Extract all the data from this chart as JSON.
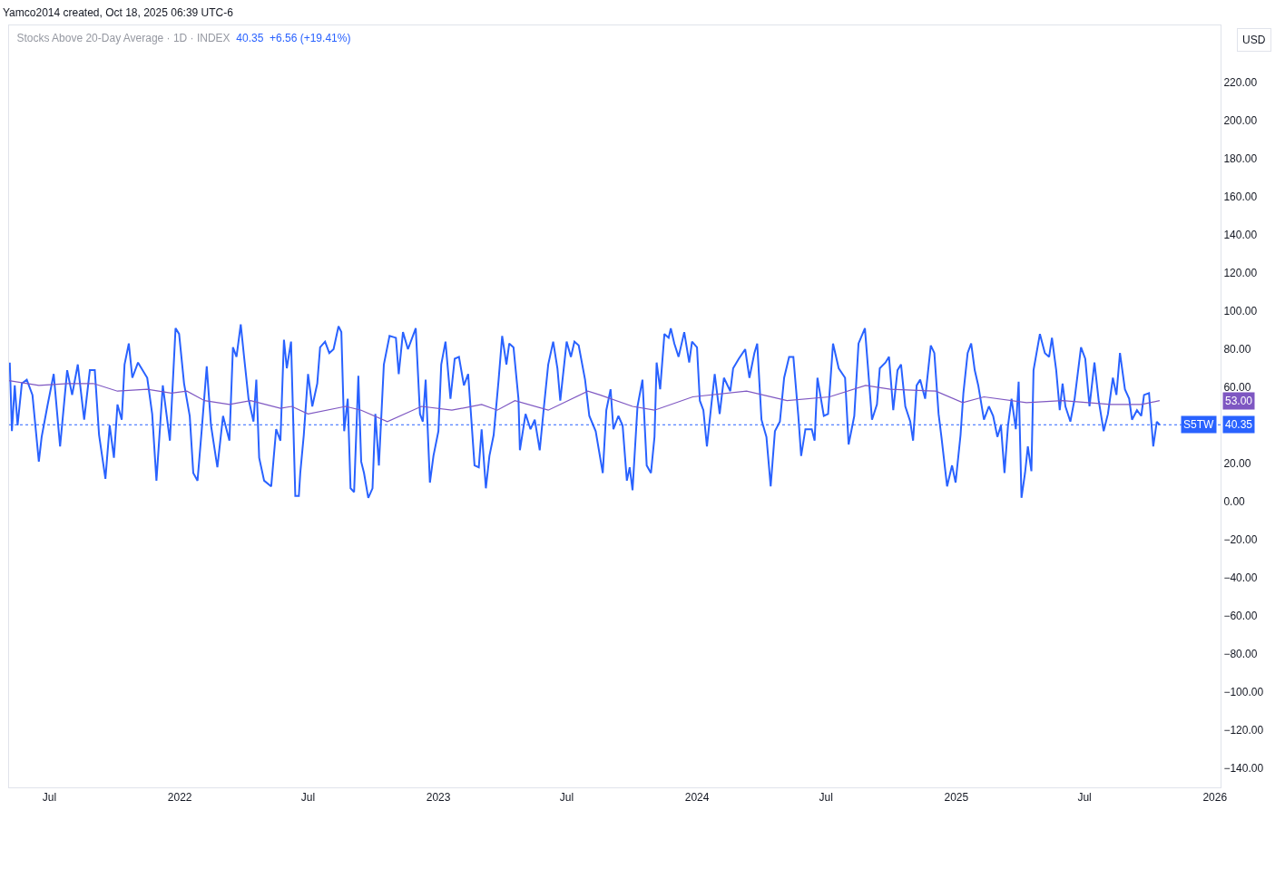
{
  "chart_data": {
    "type": "line",
    "title": "Stocks Above 20-Day Average · 1D · INDEX",
    "subtitle": "40.35  +6.56 (+19.41%)",
    "xlim": [
      "2021-05-05",
      "2026-01-09"
    ],
    "xticks": [
      {
        "value": "2021-07-01",
        "label": "Jul"
      },
      {
        "value": "2022-01-01",
        "label": "2022"
      },
      {
        "value": "2022-07-01",
        "label": "Jul"
      },
      {
        "value": "2023-01-01",
        "label": "2023"
      },
      {
        "value": "2023-07-01",
        "label": "Jul"
      },
      {
        "value": "2024-01-01",
        "label": "2024"
      },
      {
        "value": "2024-07-01",
        "label": "Jul"
      },
      {
        "value": "2025-01-01",
        "label": "2025"
      },
      {
        "value": "2025-07-01",
        "label": "Jul"
      },
      {
        "value": "2026-01-01",
        "label": "2026"
      }
    ],
    "ylim": [
      -150,
      250
    ],
    "yticks": [
      {
        "value": -140,
        "label": "−140.00"
      },
      {
        "value": -120,
        "label": "−120.00"
      },
      {
        "value": -100,
        "label": "−100.00"
      },
      {
        "value": -80,
        "label": "−80.00"
      },
      {
        "value": -60,
        "label": "−60.00"
      },
      {
        "value": -40,
        "label": "−40.00"
      },
      {
        "value": -20,
        "label": "−20.00"
      },
      {
        "value": 0,
        "label": "0.00"
      },
      {
        "value": 20,
        "label": "20.00"
      },
      {
        "value": 60,
        "label": "60.00"
      },
      {
        "value": 80,
        "label": "80.00"
      },
      {
        "value": 100,
        "label": "100.00"
      },
      {
        "value": 120,
        "label": "120.00"
      },
      {
        "value": 140,
        "label": "140.00"
      },
      {
        "value": 160,
        "label": "160.00"
      },
      {
        "value": 180,
        "label": "180.00"
      },
      {
        "value": 200,
        "label": "200.00"
      },
      {
        "value": 220,
        "label": "220.00"
      }
    ],
    "grid": false,
    "legend": false,
    "series": [
      {
        "name": "S5TW",
        "color": "#2962ff",
        "x": [
          "2021-05-06",
          "2021-05-09",
          "2021-05-13",
          "2021-05-17",
          "2021-05-23",
          "2021-05-30",
          "2021-06-07",
          "2021-06-16",
          "2021-06-20",
          "2021-06-28",
          "2021-07-07",
          "2021-07-16",
          "2021-07-26",
          "2021-08-02",
          "2021-08-10",
          "2021-08-19",
          "2021-08-27",
          "2021-09-03",
          "2021-09-09",
          "2021-09-18",
          "2021-09-24",
          "2021-09-30",
          "2021-10-05",
          "2021-10-11",
          "2021-10-15",
          "2021-10-21",
          "2021-10-26",
          "2021-11-03",
          "2021-11-16",
          "2021-11-23",
          "2021-11-29",
          "2021-12-08",
          "2021-12-18",
          "2021-12-26",
          "2021-12-31",
          "2022-01-07",
          "2022-01-15",
          "2022-01-20",
          "2022-01-26",
          "2022-02-01",
          "2022-02-08",
          "2022-02-14",
          "2022-02-23",
          "2022-03-03",
          "2022-03-12",
          "2022-03-17",
          "2022-03-22",
          "2022-03-28",
          "2022-04-02",
          "2022-04-08",
          "2022-04-15",
          "2022-04-19",
          "2022-04-23",
          "2022-04-30",
          "2022-05-10",
          "2022-05-17",
          "2022-05-23",
          "2022-05-28",
          "2022-06-01",
          "2022-06-07",
          "2022-06-13",
          "2022-06-18",
          "2022-06-20",
          "2022-06-25",
          "2022-07-01",
          "2022-07-07",
          "2022-07-14",
          "2022-07-18",
          "2022-07-25",
          "2022-07-31",
          "2022-08-06",
          "2022-08-13",
          "2022-08-17",
          "2022-08-21",
          "2022-08-26",
          "2022-08-30",
          "2022-09-04",
          "2022-09-10",
          "2022-09-14",
          "2022-09-18",
          "2022-09-24",
          "2022-09-30",
          "2022-10-04",
          "2022-10-09",
          "2022-10-16",
          "2022-10-24",
          "2022-11-02",
          "2022-11-06",
          "2022-11-12",
          "2022-11-19",
          "2022-11-30",
          "2022-12-06",
          "2022-12-10",
          "2022-12-14",
          "2022-12-20",
          "2022-12-25",
          "2023-01-01",
          "2023-01-05",
          "2023-01-11",
          "2023-01-18",
          "2023-01-24",
          "2023-01-30",
          "2023-02-06",
          "2023-02-12",
          "2023-02-21",
          "2023-02-27",
          "2023-03-03",
          "2023-03-09",
          "2023-03-14",
          "2023-03-20",
          "2023-03-27",
          "2023-04-01",
          "2023-04-07",
          "2023-04-11",
          "2023-04-17",
          "2023-04-24",
          "2023-04-26",
          "2023-05-04",
          "2023-05-11",
          "2023-05-17",
          "2023-05-24",
          "2023-05-30",
          "2023-06-05",
          "2023-06-12",
          "2023-06-18",
          "2023-06-22",
          "2023-07-01",
          "2023-07-07",
          "2023-07-12",
          "2023-07-18",
          "2023-07-27",
          "2023-08-02",
          "2023-08-11",
          "2023-08-21",
          "2023-08-26",
          "2023-09-01",
          "2023-09-05",
          "2023-09-12",
          "2023-09-18",
          "2023-09-24",
          "2023-09-28",
          "2023-10-02",
          "2023-10-09",
          "2023-10-16",
          "2023-10-22",
          "2023-10-28",
          "2023-11-02",
          "2023-11-05",
          "2023-11-10",
          "2023-11-16",
          "2023-11-22",
          "2023-11-25",
          "2023-11-30",
          "2023-12-06",
          "2023-12-14",
          "2023-12-21",
          "2023-12-25",
          "2024-01-01",
          "2024-01-05",
          "2024-01-10",
          "2024-01-15",
          "2024-01-21",
          "2024-01-26",
          "2024-02-02",
          "2024-02-08",
          "2024-02-17",
          "2024-02-21",
          "2024-02-29",
          "2024-03-09",
          "2024-03-15",
          "2024-03-22",
          "2024-03-26",
          "2024-04-01",
          "2024-04-08",
          "2024-04-14",
          "2024-04-20",
          "2024-04-27",
          "2024-05-03",
          "2024-05-10",
          "2024-05-16",
          "2024-05-23",
          "2024-05-27",
          "2024-06-02",
          "2024-06-11",
          "2024-06-15",
          "2024-06-19",
          "2024-06-28",
          "2024-07-04",
          "2024-07-11",
          "2024-07-19",
          "2024-07-28",
          "2024-08-02",
          "2024-08-10",
          "2024-08-16",
          "2024-08-25",
          "2024-08-29",
          "2024-09-04",
          "2024-09-11",
          "2024-09-15",
          "2024-09-23",
          "2024-09-28",
          "2024-10-04",
          "2024-10-10",
          "2024-10-15",
          "2024-10-21",
          "2024-10-28",
          "2024-11-01",
          "2024-11-06",
          "2024-11-11",
          "2024-11-18",
          "2024-11-26",
          "2024-12-01",
          "2024-12-07",
          "2024-12-11",
          "2024-12-19",
          "2024-12-26",
          "2024-12-31",
          "2025-01-07",
          "2025-01-11",
          "2025-01-17",
          "2025-01-22",
          "2025-01-27",
          "2025-02-01",
          "2025-02-09",
          "2025-02-16",
          "2025-02-22",
          "2025-02-28",
          "2025-03-05",
          "2025-03-10",
          "2025-03-15",
          "2025-03-20",
          "2025-03-26",
          "2025-03-30",
          "2025-04-03",
          "2025-04-08",
          "2025-04-12",
          "2025-04-17",
          "2025-04-20",
          "2025-04-29",
          "2025-05-06",
          "2025-05-12",
          "2025-05-16",
          "2025-05-22",
          "2025-05-27",
          "2025-05-31",
          "2025-06-04",
          "2025-06-11",
          "2025-06-17",
          "2025-06-26",
          "2025-07-02",
          "2025-07-08",
          "2025-07-15",
          "2025-07-21",
          "2025-07-28",
          "2025-08-03",
          "2025-08-10",
          "2025-08-15",
          "2025-08-20",
          "2025-08-27",
          "2025-09-02",
          "2025-09-06",
          "2025-09-13",
          "2025-09-19",
          "2025-09-23",
          "2025-09-30",
          "2025-10-06",
          "2025-10-11",
          "2025-10-15"
        ],
        "values": [
          73,
          37,
          61,
          40,
          62,
          64,
          56,
          21,
          34,
          50,
          67,
          29,
          69,
          56,
          72,
          43,
          69,
          69,
          35,
          12,
          40,
          23,
          51,
          43,
          72,
          83,
          65,
          73,
          65,
          46,
          11,
          61,
          32,
          91,
          88,
          62,
          45,
          15,
          11,
          38,
          71,
          40,
          18,
          45,
          32,
          81,
          76,
          93,
          75,
          54,
          42,
          64,
          23,
          11,
          8,
          38,
          32,
          85,
          70,
          84,
          3,
          3,
          15,
          35,
          67,
          50,
          62,
          81,
          84,
          78,
          80,
          92,
          89,
          37,
          54,
          7,
          5,
          66,
          21,
          15,
          2,
          7,
          46,
          19,
          72,
          87,
          86,
          67,
          89,
          80,
          91,
          46,
          42,
          64,
          10,
          24,
          37,
          72,
          84,
          54,
          75,
          76,
          61,
          67,
          19,
          18,
          38,
          7,
          24,
          35,
          64,
          87,
          72,
          83,
          81,
          54,
          27,
          46,
          38,
          43,
          27,
          50,
          72,
          84,
          70,
          53,
          84,
          76,
          84,
          82,
          64,
          45,
          37,
          15,
          48,
          59,
          38,
          45,
          40,
          11,
          18,
          6,
          50,
          64,
          19,
          15,
          34,
          73,
          59,
          88,
          86,
          91,
          83,
          76,
          89,
          73,
          84,
          81,
          53,
          48,
          29,
          50,
          67,
          46,
          65,
          58,
          70,
          75,
          80,
          65,
          78,
          83,
          43,
          34,
          8,
          37,
          42,
          65,
          76,
          76,
          45,
          24,
          38,
          38,
          32,
          65,
          45,
          46,
          83,
          70,
          65,
          30,
          45,
          83,
          91,
          72,
          43,
          51,
          70,
          73,
          76,
          48,
          69,
          72,
          50,
          42,
          32,
          61,
          64,
          54,
          82,
          78,
          46,
          34,
          8,
          19,
          10,
          35,
          57,
          78,
          83,
          69,
          61,
          43,
          50,
          45,
          34,
          40,
          15,
          40,
          54,
          38,
          63,
          2,
          15,
          29,
          16,
          69,
          88,
          78,
          76,
          86,
          69,
          48,
          62,
          50,
          42,
          54,
          81,
          75,
          50,
          73,
          53,
          37,
          46,
          65,
          56,
          78,
          59,
          54,
          43,
          48,
          45,
          56,
          57,
          29,
          42,
          40.35
        ]
      },
      {
        "color": "#7e57c2",
        "x": [
          "2021-05-05",
          "2021-06-16",
          "2021-07-27",
          "2021-09-01",
          "2021-10-05",
          "2021-11-16",
          "2021-12-20",
          "2022-01-11",
          "2022-02-05",
          "2022-03-12",
          "2022-04-11",
          "2022-05-23",
          "2022-06-08",
          "2022-07-01",
          "2022-08-23",
          "2022-09-14",
          "2022-10-21",
          "2022-12-08",
          "2023-01-20",
          "2023-03-03",
          "2023-03-25",
          "2023-04-19",
          "2023-06-05",
          "2023-07-31",
          "2023-08-17",
          "2023-10-02",
          "2023-11-02",
          "2023-12-26",
          "2024-03-11",
          "2024-05-07",
          "2024-07-06",
          "2024-08-26",
          "2024-09-30",
          "2024-12-03",
          "2025-01-10",
          "2025-02-09",
          "2025-04-10",
          "2025-05-31",
          "2025-08-07",
          "2025-09-19",
          "2025-10-15"
        ],
        "values": [
          63.5,
          61,
          62,
          62,
          58,
          59,
          57,
          58,
          53,
          51,
          53,
          49,
          50,
          46,
          50,
          48,
          42,
          50,
          48,
          51,
          48,
          53,
          48,
          58,
          56,
          50,
          48,
          55,
          58,
          53,
          55,
          61,
          59,
          58,
          52,
          55,
          52,
          53,
          51,
          51,
          53
        ]
      }
    ],
    "ref_lines": [
      {
        "axis": "y",
        "value": 40.35,
        "label": "40.35",
        "color": "#2962ff",
        "line_style": "dotted"
      }
    ],
    "annotations": [
      "Yamco2014 created, Oct 18, 2025 06:39 UTC-6",
      "USD",
      "53.00"
    ]
  }
}
